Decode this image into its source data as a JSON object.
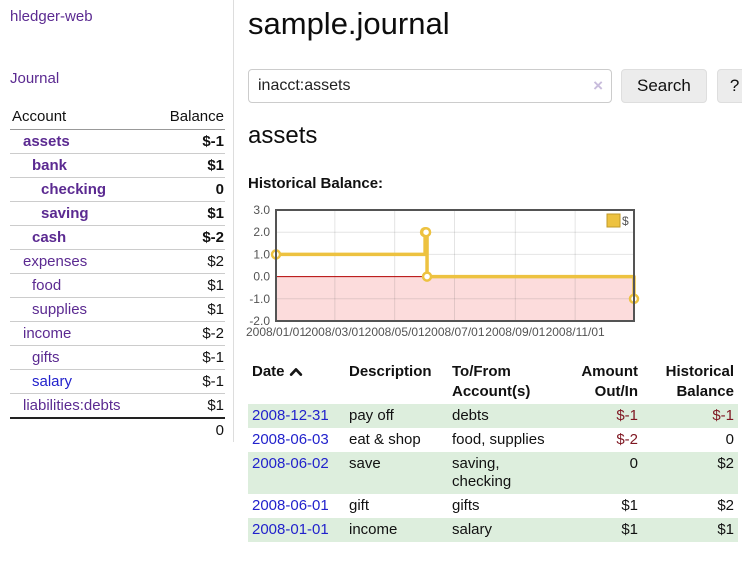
{
  "app": {
    "brand": "hledger-web"
  },
  "sidebar": {
    "journal_link": "Journal",
    "header": {
      "account": "Account",
      "balance": "Balance"
    },
    "accounts": [
      {
        "name": "assets",
        "depth": 1,
        "bold": true,
        "blue": false,
        "balance": "$-1",
        "neg": "strong"
      },
      {
        "name": "bank",
        "depth": 2,
        "bold": true,
        "blue": false,
        "balance": "$1",
        "neg": "none"
      },
      {
        "name": "checking",
        "depth": 3,
        "bold": true,
        "blue": false,
        "balance": "0",
        "neg": "none"
      },
      {
        "name": "saving",
        "depth": 3,
        "bold": true,
        "blue": false,
        "balance": "$1",
        "neg": "none"
      },
      {
        "name": "cash",
        "depth": 2,
        "bold": true,
        "blue": false,
        "balance": "$-2",
        "neg": "strong"
      },
      {
        "name": "expenses",
        "depth": 1,
        "bold": false,
        "blue": false,
        "balance": "$2",
        "neg": "none"
      },
      {
        "name": "food",
        "depth": 2,
        "bold": false,
        "blue": false,
        "balance": "$1",
        "neg": "none"
      },
      {
        "name": "supplies",
        "depth": 2,
        "bold": false,
        "blue": false,
        "balance": "$1",
        "neg": "none"
      },
      {
        "name": "income",
        "depth": 1,
        "bold": false,
        "blue": false,
        "balance": "$-2",
        "neg": "muted"
      },
      {
        "name": "gifts",
        "depth": 2,
        "bold": false,
        "blue": false,
        "balance": "$-1",
        "neg": "muted"
      },
      {
        "name": "salary",
        "depth": 2,
        "bold": false,
        "blue": true,
        "balance": "$-1",
        "neg": "muted"
      },
      {
        "name": "liabilities:debts",
        "depth": 1,
        "bold": false,
        "blue": false,
        "balance": "$1",
        "neg": "none"
      }
    ],
    "total": "0"
  },
  "header": {
    "title": "sample.journal"
  },
  "search": {
    "value": "inacct:assets",
    "clear_icon": "×",
    "submit_label": "Search",
    "help_label": "?"
  },
  "account_page": {
    "title": "assets",
    "chart_title": "Historical Balance:"
  },
  "chart_data": {
    "type": "line",
    "style": "steps",
    "x": [
      "2008-01-01",
      "2008-06-01",
      "2008-06-02",
      "2008-06-03",
      "2008-12-31"
    ],
    "series": [
      {
        "name": "$",
        "color": "#edc240",
        "values": [
          1,
          2,
          2,
          0,
          -1
        ]
      }
    ],
    "x_ticks": [
      {
        "label": "2008/01/01",
        "date": "2008-01-01"
      },
      {
        "label": "2008/03/01",
        "date": "2008-03-01"
      },
      {
        "label": "2008/05/01",
        "date": "2008-05-01"
      },
      {
        "label": "2008/07/01",
        "date": "2008-07-01"
      },
      {
        "label": "2008/09/01",
        "date": "2008-09-01"
      },
      {
        "label": "2008/11/01",
        "date": "2008-11-01"
      }
    ],
    "y_ticks": [
      3,
      2,
      1,
      0,
      -1,
      -2
    ],
    "xrange": [
      "2008-01-01",
      "2008-12-31"
    ],
    "ylim": [
      -2,
      3
    ],
    "grid": true,
    "legend": {
      "label": "$",
      "position": "top-right"
    },
    "colors": {
      "negative_region": "#fcdcdc",
      "zero_line": "#b30000",
      "grid_line": "rgba(84,84,84,0.16)",
      "border": "#545454",
      "tick_text": "#545454",
      "marker_fill": "#ffffff",
      "legend_box_border": "#c0992a"
    }
  },
  "register": {
    "columns": [
      "Date",
      "Description",
      "To/From Account(s)",
      "Amount Out/In",
      "Historical Balance"
    ],
    "rows": [
      {
        "date": "2008-12-31",
        "description": "pay off",
        "accounts": "debts",
        "amount": "$-1",
        "amount_neg": true,
        "balance": "$-1",
        "balance_neg": true
      },
      {
        "date": "2008-06-03",
        "description": "eat & shop",
        "accounts": "food, supplies",
        "amount": "$-2",
        "amount_neg": true,
        "balance": "0",
        "balance_neg": false
      },
      {
        "date": "2008-06-02",
        "description": "save",
        "accounts": "saving, checking",
        "amount": "0",
        "amount_neg": false,
        "balance": "$2",
        "balance_neg": false
      },
      {
        "date": "2008-06-01",
        "description": "gift",
        "accounts": "gifts",
        "amount": "$1",
        "amount_neg": false,
        "balance": "$2",
        "balance_neg": false
      },
      {
        "date": "2008-01-01",
        "description": "income",
        "accounts": "salary",
        "amount": "$1",
        "amount_neg": false,
        "balance": "$1",
        "balance_neg": false
      }
    ]
  }
}
